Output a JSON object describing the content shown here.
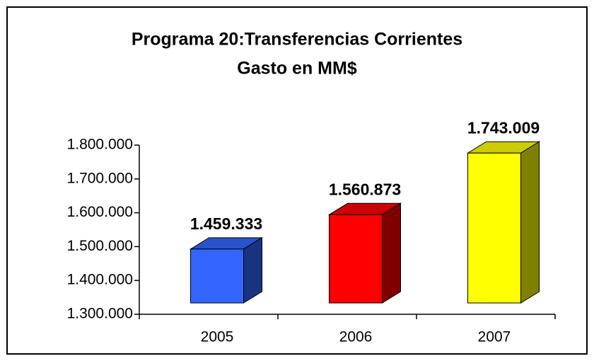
{
  "chart_data": {
    "type": "bar3d",
    "title": "Programa 20:Transferencias Corrientes",
    "subtitle": "Gasto en MM$",
    "categories": [
      "2005",
      "2006",
      "2007"
    ],
    "values": [
      1459333,
      1560873,
      1743009
    ],
    "value_labels": [
      "1.459.333",
      "1.560.873",
      "1.743.009"
    ],
    "colors": [
      "#3366ff",
      "#ff0000",
      "#ffff00"
    ],
    "ylim": [
      1300000,
      1800000
    ],
    "yticks": [
      {
        "value": 1300000,
        "label": "1.300.000"
      },
      {
        "value": 1400000,
        "label": "1.400.000"
      },
      {
        "value": 1500000,
        "label": "1.500.000"
      },
      {
        "value": 1600000,
        "label": "1.600.000"
      },
      {
        "value": 1700000,
        "label": "1.700.000"
      },
      {
        "value": 1800000,
        "label": "1.800.000"
      }
    ],
    "grid": false
  }
}
